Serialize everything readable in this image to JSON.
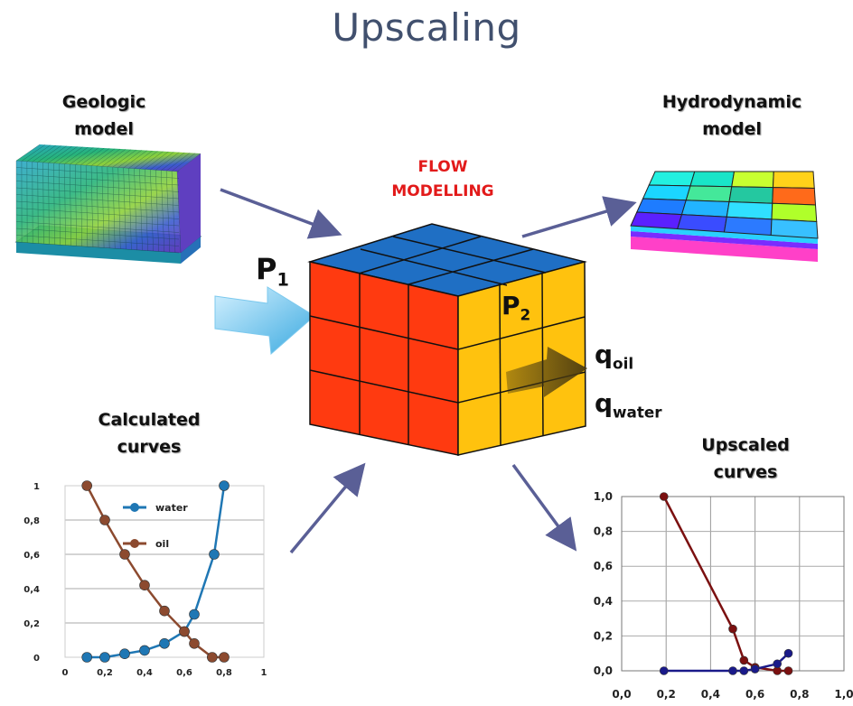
{
  "title": "Upscaling",
  "labels": {
    "geologic": [
      "Geologic",
      "model"
    ],
    "hydro": [
      "Hydrodynamic",
      "model"
    ],
    "flow": [
      "FLOW",
      "MODELLING"
    ],
    "calculated": [
      "Calculated",
      "curves"
    ],
    "upscaled": [
      "Upscaled",
      "curves"
    ]
  },
  "pressure": {
    "p1": "P",
    "p1_sub": "1",
    "p2": "P",
    "p2_sub": "2"
  },
  "rates": {
    "q1": "q",
    "q1_sub": "oil",
    "q2": "q",
    "q2_sub": "water"
  },
  "colors": {
    "title": "#41506e",
    "flow": "#e21a1a",
    "arrow": "#5a5f96",
    "cube_front": "#ff3a10",
    "cube_side": "#ffc20e",
    "cube_top": "#1f6fc4",
    "water": "#1f77b4",
    "oil": "#8c4a2f",
    "upscaled_oil": "#7b1010",
    "upscaled_water": "#1a1a8a"
  },
  "chart_data": [
    {
      "type": "line",
      "title": "",
      "x_ticks": [
        "0",
        "0,2",
        "0,4",
        "0,6",
        "0,8",
        "1"
      ],
      "y_ticks": [
        "0",
        "0,2",
        "0,4",
        "0,6",
        "0,8",
        "1"
      ],
      "xlim": [
        0,
        1
      ],
      "ylim": [
        0,
        1
      ],
      "grid": true,
      "legend": "top-right",
      "series": [
        {
          "name": "water",
          "color": "#1f77b4",
          "x": [
            0.11,
            0.2,
            0.3,
            0.4,
            0.5,
            0.6,
            0.65,
            0.75,
            0.8
          ],
          "y": [
            0.0,
            0.0,
            0.02,
            0.04,
            0.08,
            0.15,
            0.25,
            0.6,
            1.0
          ]
        },
        {
          "name": "oil",
          "color": "#8c4a2f",
          "x": [
            0.11,
            0.2,
            0.3,
            0.4,
            0.5,
            0.6,
            0.65,
            0.74,
            0.8
          ],
          "y": [
            1.0,
            0.8,
            0.6,
            0.42,
            0.27,
            0.15,
            0.08,
            0.0,
            0.0
          ]
        }
      ]
    },
    {
      "type": "line",
      "title": "",
      "x_ticks": [
        "0,0",
        "0,2",
        "0,4",
        "0,6",
        "0,8",
        "1,0"
      ],
      "y_ticks": [
        "0,0",
        "0,2",
        "0,4",
        "0,6",
        "0,8",
        "1,0"
      ],
      "xlim": [
        0,
        1
      ],
      "ylim": [
        0,
        1
      ],
      "grid": true,
      "series": [
        {
          "color": "#7b1010",
          "x": [
            0.19,
            0.5,
            0.55,
            0.6,
            0.7,
            0.75
          ],
          "y": [
            1.0,
            0.24,
            0.06,
            0.02,
            0.0,
            0.0
          ]
        },
        {
          "color": "#1a1a8a",
          "x": [
            0.19,
            0.5,
            0.55,
            0.6,
            0.7,
            0.75
          ],
          "y": [
            0.0,
            0.0,
            0.0,
            0.01,
            0.04,
            0.1
          ]
        }
      ]
    }
  ]
}
